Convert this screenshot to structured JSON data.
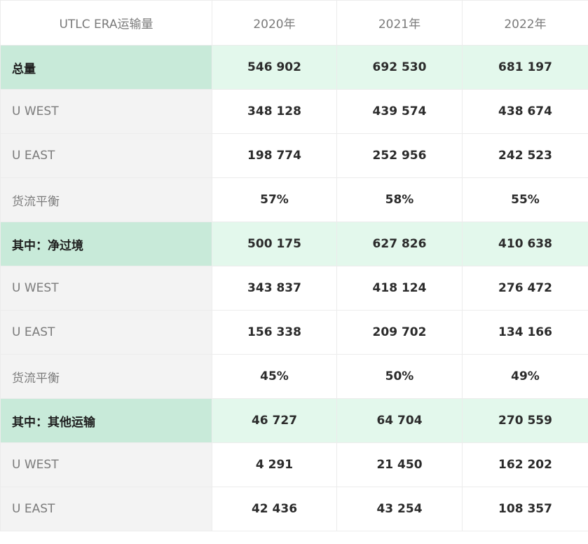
{
  "header": {
    "label": "UTLC ERA运输量",
    "years": [
      "2020年",
      "2021年",
      "2022年"
    ]
  },
  "rows": [
    {
      "label": "总量",
      "group": true,
      "values": [
        "546 902",
        "692 530",
        "681 197"
      ]
    },
    {
      "label": "U WEST",
      "group": false,
      "values": [
        "348 128",
        "439 574",
        "438 674"
      ]
    },
    {
      "label": "U EAST",
      "group": false,
      "values": [
        "198 774",
        "252 956",
        "242 523"
      ]
    },
    {
      "label": "货流平衡",
      "group": false,
      "values": [
        "57%",
        "58%",
        "55%"
      ]
    },
    {
      "label": "其中：净过境",
      "group": true,
      "values": [
        "500 175",
        "627 826",
        "410 638"
      ]
    },
    {
      "label": "U WEST",
      "group": false,
      "values": [
        "343 837",
        "418 124",
        "276 472"
      ]
    },
    {
      "label": "U EAST",
      "group": false,
      "values": [
        "156 338",
        "209 702",
        "134 166"
      ]
    },
    {
      "label": "货流平衡",
      "group": false,
      "values": [
        "45%",
        "50%",
        "49%"
      ]
    },
    {
      "label": "其中：其他运输",
      "group": true,
      "values": [
        "46 727",
        "64 704",
        "270 559"
      ]
    },
    {
      "label": "U WEST",
      "group": false,
      "values": [
        "4 291",
        "21 450",
        "162 202"
      ]
    },
    {
      "label": "U EAST",
      "group": false,
      "values": [
        "42 436",
        "43 254",
        "108 357"
      ]
    }
  ]
}
